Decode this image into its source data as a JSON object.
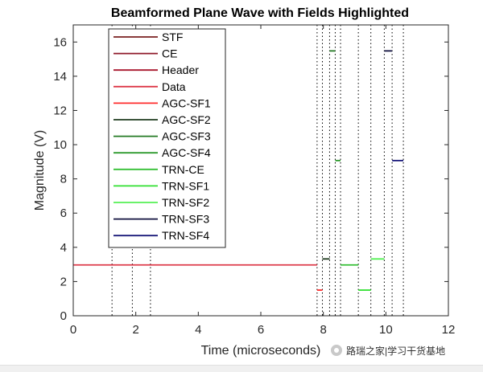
{
  "chart_data": {
    "type": "line",
    "title": "Beamformed Plane Wave with Fields Highlighted",
    "xlabel": "Time (microseconds)",
    "ylabel": "Magnitude (V)",
    "xlim": [
      0,
      12
    ],
    "ylim": [
      0,
      17
    ],
    "xticks": [
      0,
      2,
      4,
      6,
      8,
      10,
      12
    ],
    "yticks": [
      0,
      2,
      4,
      6,
      8,
      10,
      12,
      14,
      16
    ],
    "grid": false,
    "legend_location": "top-left",
    "field_boundaries_us": [
      1.24,
      1.89,
      2.47,
      7.8,
      7.97,
      8.2,
      8.38,
      8.55,
      9.12,
      9.52,
      9.95,
      10.2,
      10.56
    ],
    "series": [
      {
        "name": "STF",
        "color": "#7a1f1f",
        "segments": []
      },
      {
        "name": "CE",
        "color": "#8f1a2a",
        "segments": []
      },
      {
        "name": "Header",
        "color": "#a8152b",
        "segments": []
      },
      {
        "name": "Data",
        "color": "#dd3a4a",
        "segments": [
          {
            "x": [
              0,
              7.8
            ],
            "y": [
              2.97,
              2.97
            ]
          }
        ]
      },
      {
        "name": "AGC-SF1",
        "color": "#ff2a2a",
        "segments": [
          {
            "x": [
              7.8,
              7.97
            ],
            "y": [
              1.5,
              1.5
            ]
          }
        ]
      },
      {
        "name": "AGC-SF2",
        "color": "#1e3b1e",
        "segments": [
          {
            "x": [
              7.97,
              8.2
            ],
            "y": [
              3.32,
              3.32
            ]
          }
        ]
      },
      {
        "name": "AGC-SF3",
        "color": "#237a23",
        "segments": [
          {
            "x": [
              8.2,
              8.38
            ],
            "y": [
              15.48,
              15.48
            ]
          }
        ]
      },
      {
        "name": "AGC-SF4",
        "color": "#2e9a2e",
        "segments": [
          {
            "x": [
              8.38,
              8.55
            ],
            "y": [
              9.07,
              9.07
            ]
          }
        ]
      },
      {
        "name": "TRN-CE",
        "color": "#35bf35",
        "segments": [
          {
            "x": [
              8.55,
              9.12
            ],
            "y": [
              2.97,
              2.97
            ]
          }
        ]
      },
      {
        "name": "TRN-SF1",
        "color": "#30e030",
        "segments": [
          {
            "x": [
              9.12,
              9.52
            ],
            "y": [
              1.5,
              1.5
            ]
          }
        ]
      },
      {
        "name": "TRN-SF2",
        "color": "#55f055",
        "segments": [
          {
            "x": [
              9.52,
              9.95
            ],
            "y": [
              3.32,
              3.32
            ]
          }
        ]
      },
      {
        "name": "TRN-SF3",
        "color": "#12123f",
        "segments": [
          {
            "x": [
              9.95,
              10.2
            ],
            "y": [
              15.48,
              15.48
            ]
          }
        ]
      },
      {
        "name": "TRN-SF4",
        "color": "#1a1a7a",
        "segments": [
          {
            "x": [
              10.2,
              10.56
            ],
            "y": [
              9.07,
              9.07
            ]
          }
        ]
      }
    ]
  },
  "watermark": {
    "text": "路瑞之家|学习干货基地"
  }
}
